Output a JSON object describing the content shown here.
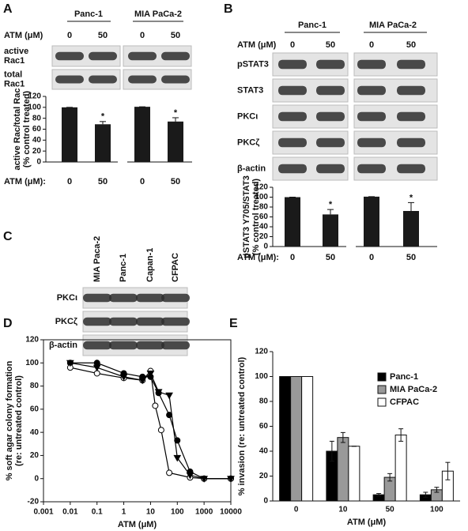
{
  "panel_labels": [
    "A",
    "B",
    "C",
    "D",
    "E"
  ],
  "blots": [
    {
      "groups": [
        "Panc-1",
        "MIA PaCa-2"
      ],
      "treatment_label": "ATM (μM)",
      "doses": [
        "0",
        "50",
        "0",
        "50"
      ],
      "rows": [
        [
          "active",
          "Rac1"
        ],
        [
          "total",
          "Rac1"
        ]
      ]
    },
    {
      "groups": [
        "Panc-1",
        "MIA PaCa-2"
      ],
      "treatment_label": "ATM (μM)",
      "doses": [
        "0",
        "50",
        "0",
        "50"
      ],
      "rows": [
        [
          "pSTAT3"
        ],
        [
          "STAT3"
        ],
        [
          "PKCι"
        ],
        [
          "PKCζ"
        ],
        [
          "β-actin"
        ]
      ]
    },
    {
      "lanes": [
        "MIA Paca-2",
        "Panc-1",
        "Capan-1",
        "CFPAC"
      ],
      "rows": [
        [
          "PKCι"
        ],
        [
          "PKCζ"
        ],
        [
          "β-actin"
        ]
      ]
    }
  ],
  "chart_data": [
    {
      "type": "bar",
      "ylabel": [
        "active Rac/total Rac",
        "(% control treated)"
      ],
      "xlabel": "ATM (μM):",
      "categories": [
        "0",
        "50",
        "0",
        "50"
      ],
      "values": [
        100,
        69,
        101,
        74
      ],
      "errors": [
        0,
        5,
        0,
        7
      ],
      "annotations": [
        null,
        "*",
        null,
        "*"
      ],
      "color": "#1a1a1a",
      "ylim": [
        0,
        120
      ],
      "yticks": [
        0,
        20,
        40,
        60,
        80,
        100,
        120
      ]
    },
    {
      "type": "bar",
      "ylabel": [
        "pSTAT3 Y705/STAT3",
        "(% control treated)"
      ],
      "xlabel": "ATM (μM):",
      "categories": [
        "0",
        "50",
        "0",
        "50"
      ],
      "values": [
        100,
        65,
        101,
        72
      ],
      "errors": [
        0,
        10,
        0,
        17
      ],
      "annotations": [
        null,
        "*",
        null,
        "*"
      ],
      "color": "#1a1a1a",
      "ylim": [
        0,
        120
      ],
      "yticks": [
        0,
        20,
        40,
        60,
        80,
        100,
        120
      ]
    },
    {
      "type": "scatter",
      "log_x": true,
      "ylabel": [
        "% soft agar colony formation",
        "(re: untreated control)"
      ],
      "xlabel": "ATM (μM)",
      "xlim": [
        0.001,
        10000
      ],
      "xticks": [
        0.001,
        0.01,
        0.1,
        1,
        10,
        100,
        1000,
        10000
      ],
      "ylim": [
        -20,
        120
      ],
      "yticks": [
        -20,
        0,
        20,
        40,
        60,
        80,
        100,
        120
      ],
      "series": [
        {
          "marker": "circle",
          "color": "#000000",
          "fill": "#000000",
          "x": [
            0.01,
            0.1,
            1,
            5,
            10,
            20,
            50,
            100,
            300,
            1000,
            10000
          ],
          "values": [
            100,
            100,
            91,
            88,
            88,
            74,
            55,
            33,
            6,
            0,
            0
          ]
        },
        {
          "marker": "circle",
          "color": "#000000",
          "fill": "#ffffff",
          "x": [
            0.01,
            0.1,
            1,
            5,
            10,
            15,
            25,
            50,
            300,
            1000,
            10000
          ],
          "values": [
            96,
            91,
            87,
            85,
            93,
            63,
            42,
            5,
            1,
            0,
            0
          ]
        },
        {
          "marker": "triangle",
          "color": "#000000",
          "fill": "#000000",
          "x": [
            0.01,
            0.1,
            1,
            5,
            10,
            20,
            50,
            100,
            300,
            1000,
            10000
          ],
          "values": [
            100,
            96,
            88,
            85,
            91,
            75,
            72,
            18,
            3,
            0,
            0
          ]
        }
      ]
    },
    {
      "type": "grouped-bar",
      "ylabel": [
        "% invasion (re: untreated control)"
      ],
      "xlabel": "ATM (μM)",
      "categories": [
        "0",
        "10",
        "50",
        "100"
      ],
      "legend": "upper-right",
      "ylim": [
        0,
        120
      ],
      "yticks": [
        0,
        20,
        40,
        60,
        80,
        100,
        120
      ],
      "series": [
        {
          "name": "Panc-1",
          "color": "#000000",
          "values": [
            100,
            40,
            5,
            5
          ],
          "errors": [
            0,
            8,
            1,
            2
          ]
        },
        {
          "name": "MIA PaCa-2",
          "color": "#999999",
          "values": [
            100,
            51,
            19,
            9
          ],
          "errors": [
            0,
            4,
            3,
            2
          ]
        },
        {
          "name": "CFPAC",
          "color": "#ffffff",
          "values": [
            100,
            44,
            53,
            24
          ],
          "errors": [
            0,
            0,
            5,
            7
          ]
        }
      ]
    }
  ]
}
